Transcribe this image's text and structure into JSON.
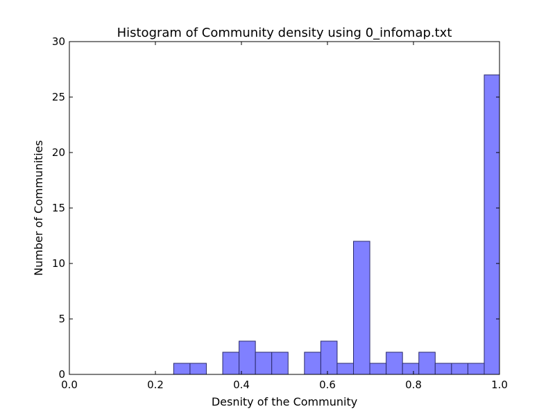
{
  "chart_data": {
    "type": "bar",
    "title": "Histogram of Community density using 0_infomap.txt",
    "xlabel": "Desnity of the Community",
    "ylabel": "Number of Communities",
    "xlim": [
      0.0,
      1.0
    ],
    "ylim": [
      0,
      30
    ],
    "xticks": [
      "0.0",
      "0.2",
      "0.4",
      "0.6",
      "0.8",
      "1.0"
    ],
    "yticks": [
      "0",
      "5",
      "10",
      "15",
      "20",
      "25",
      "30"
    ],
    "bar_color": "#8080ff",
    "bins": [
      {
        "x0": 0.2425,
        "x1": 0.2805,
        "count": 1
      },
      {
        "x0": 0.2805,
        "x1": 0.3185,
        "count": 1
      },
      {
        "x0": 0.3565,
        "x1": 0.3945,
        "count": 2
      },
      {
        "x0": 0.3945,
        "x1": 0.4325,
        "count": 3
      },
      {
        "x0": 0.4325,
        "x1": 0.4705,
        "count": 2
      },
      {
        "x0": 0.4705,
        "x1": 0.5085,
        "count": 2
      },
      {
        "x0": 0.5465,
        "x1": 0.5845,
        "count": 2
      },
      {
        "x0": 0.5845,
        "x1": 0.6225,
        "count": 3
      },
      {
        "x0": 0.6225,
        "x1": 0.6605,
        "count": 1
      },
      {
        "x0": 0.6605,
        "x1": 0.6985,
        "count": 12
      },
      {
        "x0": 0.6985,
        "x1": 0.7365,
        "count": 1
      },
      {
        "x0": 0.7365,
        "x1": 0.7745,
        "count": 2
      },
      {
        "x0": 0.7745,
        "x1": 0.8125,
        "count": 1
      },
      {
        "x0": 0.8125,
        "x1": 0.8505,
        "count": 2
      },
      {
        "x0": 0.8505,
        "x1": 0.8885,
        "count": 1
      },
      {
        "x0": 0.8885,
        "x1": 0.9265,
        "count": 1
      },
      {
        "x0": 0.9265,
        "x1": 0.9645,
        "count": 1
      },
      {
        "x0": 0.9645,
        "x1": 1.0,
        "count": 27
      }
    ]
  }
}
